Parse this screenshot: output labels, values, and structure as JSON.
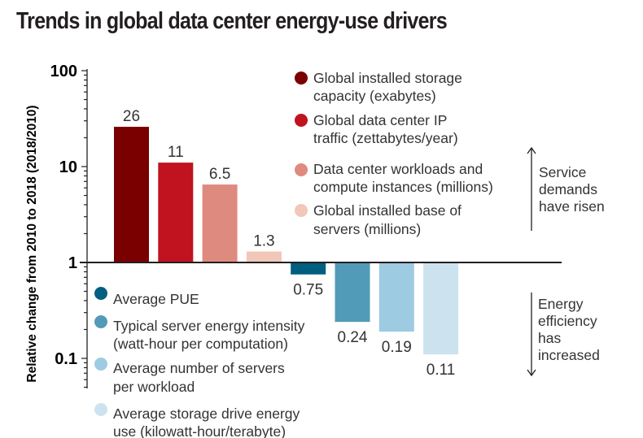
{
  "chart_data": {
    "type": "bar",
    "title": "Trends in global data center energy-use drivers",
    "ylabel": "Relative change from 2010 to 2018 (2018/2010)",
    "xlabel": "",
    "yscale": "log",
    "ylim": [
      0.05,
      100
    ],
    "baseline": 1,
    "yticks": [
      {
        "value": 100,
        "label": "100"
      },
      {
        "value": 10,
        "label": "10"
      },
      {
        "value": 1,
        "label": "1"
      },
      {
        "value": 0.1,
        "label": "0.1"
      }
    ],
    "grid": false,
    "categories": [
      "Global installed storage capacity (exabytes)",
      "Global data center IP traffic (zettabytes/year)",
      "Data center workloads and compute instances (millions)",
      "Global installed base of servers (millions)",
      "Average PUE",
      "Typical server energy intensity (watt-hour per computation)",
      "Average number of servers per workload",
      "Average storage drive energy use (kilowatt-hour/terabyte)"
    ],
    "series": [
      {
        "name": "Relative change 2010-2018",
        "values": [
          26,
          11,
          6.5,
          1.3,
          0.75,
          0.24,
          0.19,
          0.11
        ],
        "labels": [
          "26",
          "11",
          "6.5",
          "1.3",
          "0.75",
          "0.24",
          "0.19",
          "0.11"
        ],
        "colors": [
          "#7a0000",
          "#c1121f",
          "#df8a7e",
          "#f0c7b8",
          "#005f7f",
          "#519bb8",
          "#9dcbe2",
          "#cce3ef"
        ]
      }
    ],
    "legend": {
      "placement": "inline",
      "groups": [
        {
          "name": "service-demands",
          "items": [
            {
              "lines": [
                "Global installed storage",
                "capacity (exabytes)"
              ],
              "color": "#7a0000"
            },
            {
              "lines": [
                "Global data center IP",
                " traffic (zettabytes/year)"
              ],
              "color": "#c1121f"
            },
            {
              "lines": [
                "Data center workloads and",
                "compute instances (millions)"
              ],
              "color": "#df8a7e"
            },
            {
              "lines": [
                "Global installed base of",
                "servers (millions)"
              ],
              "color": "#f0c7b8"
            }
          ]
        },
        {
          "name": "energy-efficiency",
          "items": [
            {
              "lines": [
                "Average PUE"
              ],
              "color": "#005f7f"
            },
            {
              "lines": [
                "Typical server energy intensity",
                "(watt-hour per computation)"
              ],
              "color": "#519bb8"
            },
            {
              "lines": [
                "Average number of servers",
                "per workload"
              ],
              "color": "#9dcbe2"
            },
            {
              "lines": [
                "Average storage drive energy",
                "use (kilowatt-hour/terabyte)"
              ],
              "color": "#cce3ef"
            }
          ]
        }
      ]
    },
    "annotations": [
      {
        "name": "service-demands-note",
        "direction": "up",
        "lines": [
          "Service",
          "demands",
          "have risen"
        ]
      },
      {
        "name": "energy-efficiency-note",
        "direction": "down",
        "lines": [
          "Energy",
          "efficiency",
          "has",
          "increased"
        ]
      }
    ]
  }
}
